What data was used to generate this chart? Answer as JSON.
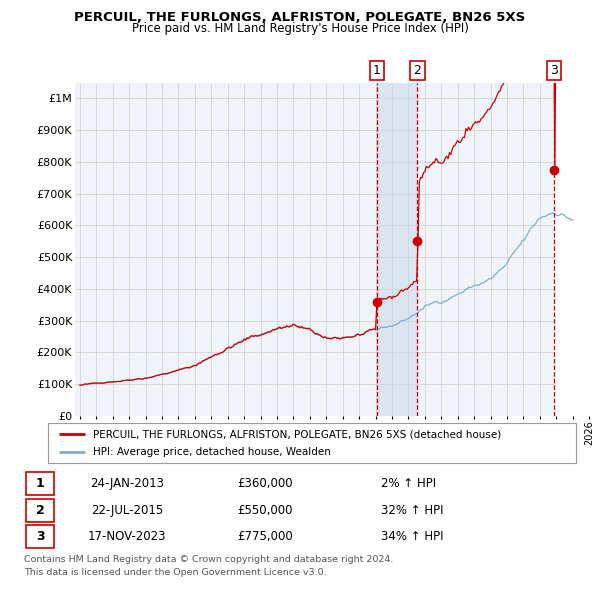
{
  "title": "PERCUIL, THE FURLONGS, ALFRISTON, POLEGATE, BN26 5XS",
  "subtitle": "Price paid vs. HM Land Registry's House Price Index (HPI)",
  "ylim": [
    0,
    1050000
  ],
  "yticks": [
    0,
    100000,
    200000,
    300000,
    400000,
    500000,
    600000,
    700000,
    800000,
    900000,
    1000000
  ],
  "ytick_labels": [
    "£0",
    "£100K",
    "£200K",
    "£300K",
    "£400K",
    "£500K",
    "£600K",
    "£700K",
    "£800K",
    "£900K",
    "£1M"
  ],
  "background_color": "#f0f4f8",
  "grid_color": "#cccccc",
  "sale_color": "#cc0000",
  "hpi_color": "#7eaed4",
  "purchases": [
    {
      "date_num": 2013.07,
      "price": 360000,
      "label": "1",
      "date_str": "24-JAN-2013",
      "change": "2% ↑ HPI"
    },
    {
      "date_num": 2015.55,
      "price": 550000,
      "label": "2",
      "date_str": "22-JUL-2015",
      "change": "32% ↑ HPI"
    },
    {
      "date_num": 2023.88,
      "price": 775000,
      "label": "3",
      "date_str": "17-NOV-2023",
      "change": "34% ↑ HPI"
    }
  ],
  "legend_line1": "PERCUIL, THE FURLONGS, ALFRISTON, POLEGATE, BN26 5XS (detached house)",
  "legend_line2": "HPI: Average price, detached house, Wealden",
  "footnote1": "Contains HM Land Registry data © Crown copyright and database right 2024.",
  "footnote2": "This data is licensed under the Open Government Licence v3.0.",
  "xlim_left": 1994.7,
  "xlim_right": 2026.3
}
